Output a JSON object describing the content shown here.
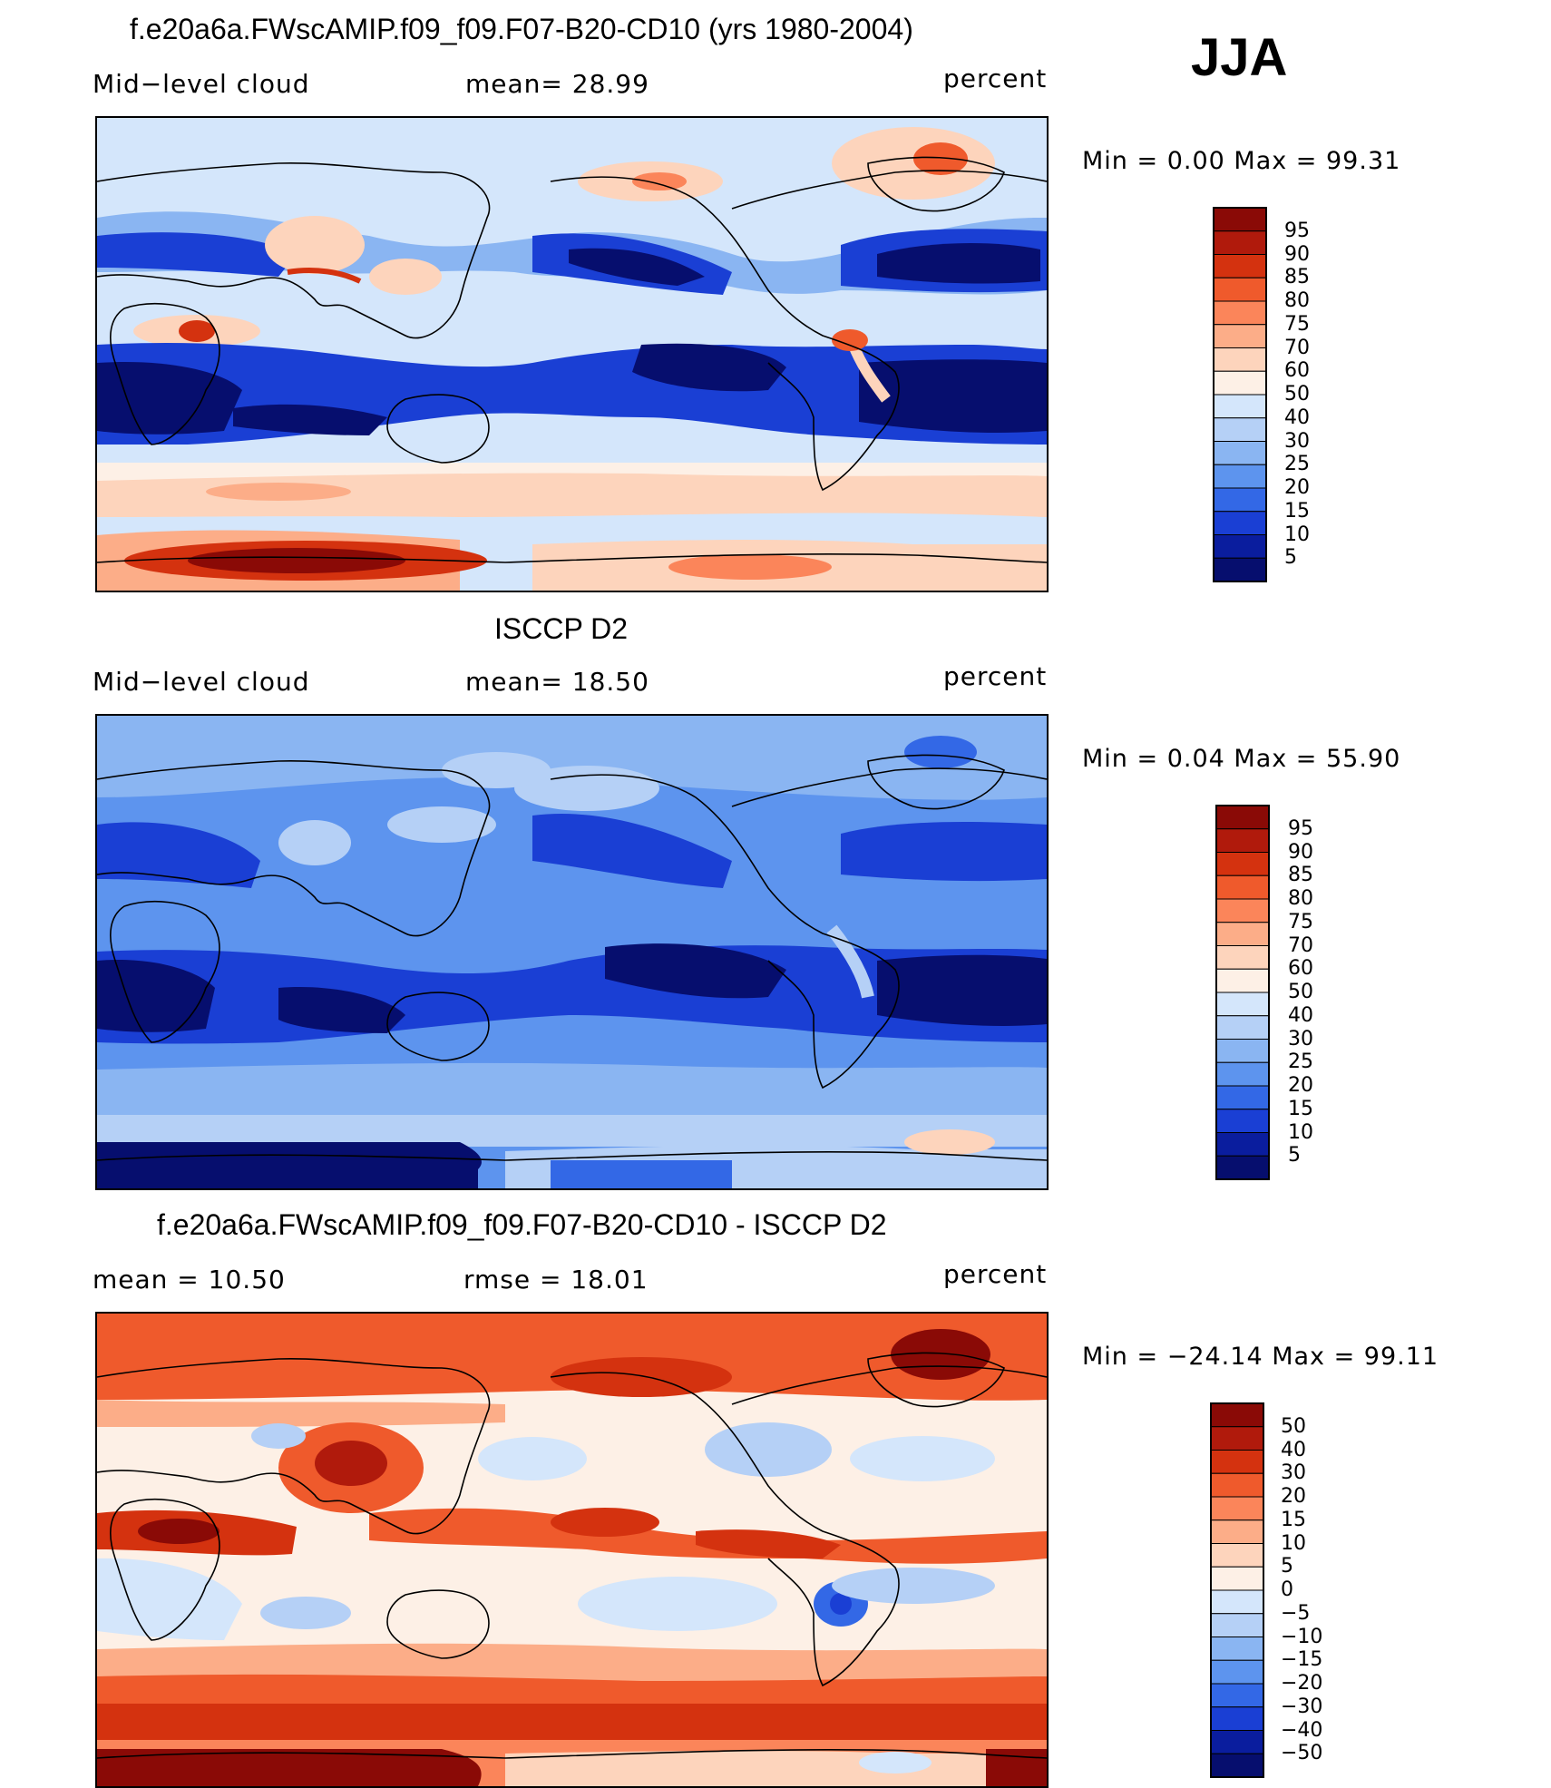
{
  "season": "JJA",
  "panels": [
    {
      "id": "model",
      "title": "f.e20a6a.FWscAMIP.f09_f09.F07-B20-CD10 (yrs 1980-2004)",
      "left_label": "Mid−level cloud",
      "center_label": "mean=   28.99",
      "units": "percent",
      "minmax": "Min  =     0.00  Max  =    99.31",
      "colorbar_levels": [
        "95",
        "90",
        "85",
        "80",
        "75",
        "70",
        "60",
        "50",
        "40",
        "30",
        "25",
        "20",
        "15",
        "10",
        "5"
      ],
      "colorbar_colors": [
        "#8a0a06",
        "#b01a0c",
        "#d4320f",
        "#ef5a2c",
        "#fb855a",
        "#fcad88",
        "#fdd4bc",
        "#fdf0e6",
        "#d4e6fb",
        "#b5d0f6",
        "#8ab5f2",
        "#5d94ee",
        "#3368e6",
        "#1a3fd4",
        "#0a1d9e",
        "#060e6e"
      ]
    },
    {
      "id": "obs",
      "title": "ISCCP D2",
      "left_label": "Mid−level cloud",
      "center_label": "mean=   18.50",
      "units": "percent",
      "minmax": "Min  =     0.04  Max  =    55.90",
      "colorbar_levels": [
        "95",
        "90",
        "85",
        "80",
        "75",
        "70",
        "60",
        "50",
        "40",
        "30",
        "25",
        "20",
        "15",
        "10",
        "5"
      ],
      "colorbar_colors": [
        "#8a0a06",
        "#b01a0c",
        "#d4320f",
        "#ef5a2c",
        "#fb855a",
        "#fcad88",
        "#fdd4bc",
        "#fdf0e6",
        "#d4e6fb",
        "#b5d0f6",
        "#8ab5f2",
        "#5d94ee",
        "#3368e6",
        "#1a3fd4",
        "#0a1d9e",
        "#060e6e"
      ]
    },
    {
      "id": "diff",
      "title": "f.e20a6a.FWscAMIP.f09_f09.F07-B20-CD10 - ISCCP D2",
      "left_label": "mean  =    10.50",
      "center_label": "rmse  =    18.01",
      "units": "percent",
      "minmax": "Min  = −24.14  Max  =    99.11",
      "colorbar_levels": [
        "50",
        "40",
        "30",
        "20",
        "15",
        "10",
        "5",
        "0",
        "−5",
        "−10",
        "−15",
        "−20",
        "−30",
        "−40",
        "−50"
      ],
      "colorbar_colors": [
        "#8a0a06",
        "#b01a0c",
        "#d4320f",
        "#ef5a2c",
        "#fb855a",
        "#fcad88",
        "#fdd4bc",
        "#fdf0e6",
        "#d4e6fb",
        "#b5d0f6",
        "#8ab5f2",
        "#5d94ee",
        "#3368e6",
        "#1a3fd4",
        "#0a1d9e",
        "#060e6e"
      ]
    }
  ],
  "colors": {
    "deep_blue": "#060e6e",
    "mid_blue": "#3368e6",
    "light_blue": "#d4e6fb",
    "light_peach": "#fdd4bc",
    "orange": "#ef5a2c",
    "dark_red": "#8a0a06",
    "coastline": "#000000"
  }
}
